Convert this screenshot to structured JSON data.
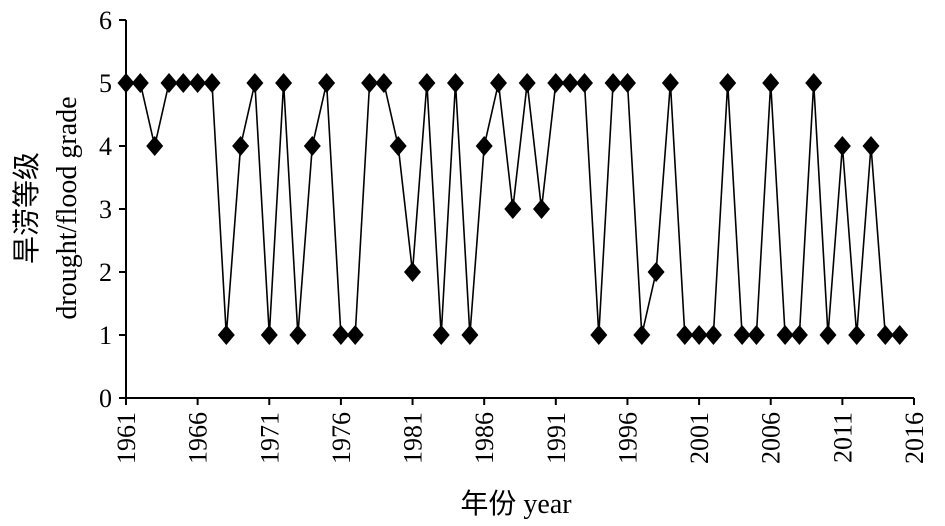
{
  "chart_data": {
    "type": "line",
    "title": "",
    "xlabel": "年份 year",
    "ylabel_cn": "旱涝等级",
    "ylabel_en": "drought/flood grade",
    "xlim": [
      1961,
      2016
    ],
    "ylim": [
      0,
      6
    ],
    "x_ticks": [
      1961,
      1966,
      1971,
      1976,
      1981,
      1986,
      1991,
      1996,
      2001,
      2006,
      2011,
      2016
    ],
    "y_ticks": [
      0,
      1,
      2,
      3,
      4,
      5,
      6
    ],
    "marker": "diamond",
    "grid": false,
    "legend": "none",
    "line_color": "#000000",
    "marker_color": "#000000",
    "series": [
      {
        "x": [
          1961,
          1962,
          1963,
          1964,
          1965,
          1966,
          1967,
          1968,
          1969,
          1970,
          1971,
          1972,
          1973,
          1974,
          1975,
          1976,
          1977,
          1978,
          1979,
          1980,
          1981,
          1982,
          1983,
          1984,
          1985,
          1986,
          1987,
          1988,
          1989,
          1990,
          1991,
          1992,
          1993,
          1994,
          1995,
          1996,
          1997,
          1998,
          1999,
          2000,
          2001,
          2002,
          2003,
          2004,
          2005,
          2006,
          2007,
          2008,
          2009,
          2010,
          2011,
          2012,
          2013,
          2014,
          2015
        ],
        "values": [
          5,
          5,
          4,
          5,
          5,
          5,
          5,
          1,
          4,
          5,
          1,
          5,
          1,
          4,
          5,
          1,
          1,
          5,
          5,
          4,
          2,
          5,
          1,
          5,
          1,
          4,
          5,
          3,
          5,
          3,
          5,
          5,
          5,
          1,
          5,
          5,
          1,
          2,
          5,
          1,
          1,
          1,
          5,
          1,
          1,
          5,
          1,
          1,
          5,
          1,
          4,
          1,
          4,
          1,
          1
        ]
      }
    ]
  }
}
